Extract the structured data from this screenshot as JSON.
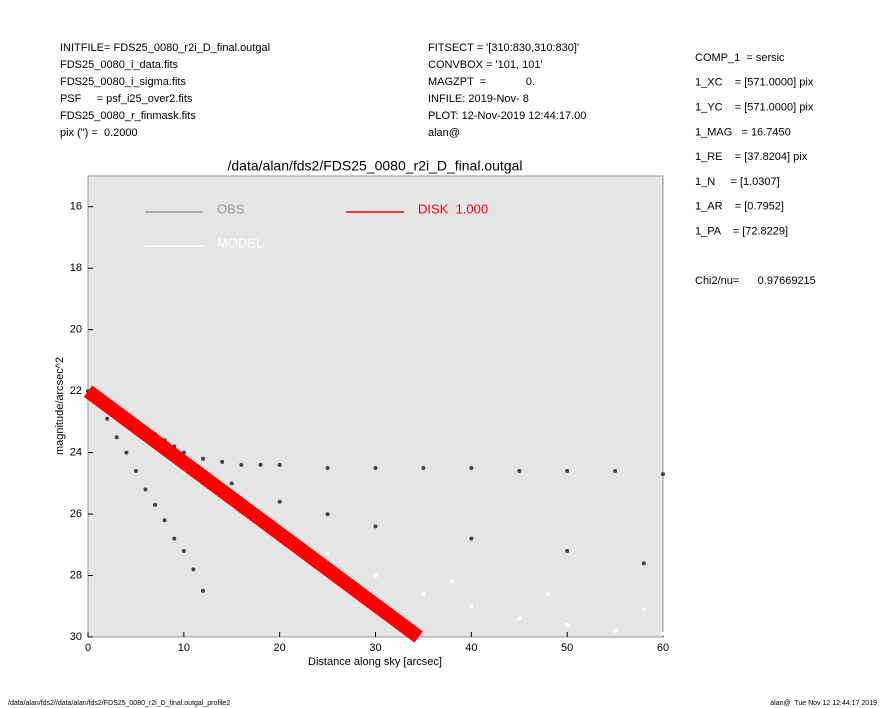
{
  "header": {
    "left": [
      "INITFILE= FDS25_0080_r2i_D_final.outgal",
      "FDS25_0080_i_data.fits",
      "FDS25_0080_i_sigma.fits",
      "PSF     = psf_i25_over2.fits",
      "FDS25_0080_r_finmask.fits",
      "pix (\") =  0.2000"
    ],
    "middle": [
      "FITSECT = '[310:830,310:830]'",
      "CONVBOX = '101, 101'",
      "MAGZPT  =             0.",
      "INFILE: 2019-Nov- 8",
      "PLOT: 12-Nov-2019 12:44:17.00",
      "alan@"
    ]
  },
  "params": [
    "COMP_1  = sersic",
    "1_XC    = [571.0000] pix",
    "1_YC    = [571.0000] pix",
    "1_MAG   = 16.7450",
    "1_RE    = [37.8204] pix",
    "1_N     = [1.0307]",
    "1_AR    = [0.7952]",
    "1_PA    = [72.8229]"
  ],
  "chi2": "Chi2/nu=      0.97669215",
  "footer": {
    "left": "/data/alan/fds2//data/alan/fds2/FDS25_0080_r2i_D_final.outgal_profile2",
    "right": "alan@  Tue Nov 12 12:44:17 2019"
  },
  "chart_data": {
    "type": "scatter",
    "title": "/data/alan/fds2/FDS25_0080_r2i_D_final.outgal",
    "xlabel": "Distance along sky [arcsec]",
    "ylabel": "magnitude/arcsec^2",
    "xlim": [
      0,
      60
    ],
    "ylim": [
      30,
      15
    ],
    "xticks": [
      0,
      10,
      20,
      30,
      40,
      50,
      60
    ],
    "yticks": [
      16,
      18,
      20,
      22,
      24,
      26,
      28,
      30
    ],
    "background": "#e5e5e5",
    "series": [
      {
        "name": "OBS",
        "color": "#444444",
        "mode": "points",
        "x": [
          0,
          1,
          2,
          3,
          4,
          5,
          6,
          7,
          8,
          9,
          10,
          12,
          14,
          16,
          18,
          20,
          25,
          30,
          35,
          40,
          45,
          50,
          55,
          60,
          1,
          2,
          3,
          4,
          5,
          6,
          7,
          8,
          9,
          10,
          11,
          12,
          15,
          20,
          25,
          30,
          40,
          50,
          58
        ],
        "values": [
          22.0,
          22.2,
          22.4,
          22.6,
          22.8,
          23.0,
          23.2,
          23.4,
          23.6,
          23.8,
          24.0,
          24.2,
          24.3,
          24.4,
          24.4,
          24.4,
          24.5,
          24.5,
          24.5,
          24.5,
          24.6,
          24.6,
          24.6,
          24.7,
          22.4,
          22.9,
          23.5,
          24.0,
          24.6,
          25.2,
          25.7,
          26.2,
          26.8,
          27.2,
          27.8,
          28.5,
          25.0,
          25.6,
          26.0,
          26.4,
          26.8,
          27.2,
          27.6
        ]
      },
      {
        "name": "MODEL",
        "color": "#ffffff",
        "mode": "points",
        "x": [
          5,
          10,
          15,
          20,
          25,
          30,
          35,
          40,
          45,
          50,
          55,
          60,
          38,
          48,
          58
        ],
        "values": [
          23.2,
          24.6,
          25.8,
          26.6,
          27.3,
          28.0,
          28.6,
          29.0,
          29.4,
          29.6,
          29.8,
          29.9,
          28.2,
          28.6,
          29.1
        ]
      },
      {
        "name": "DISK  1.000",
        "color": "#ff0000",
        "mode": "line",
        "x": [
          0,
          34.5
        ],
        "values": [
          22.0,
          30.0
        ]
      }
    ]
  }
}
